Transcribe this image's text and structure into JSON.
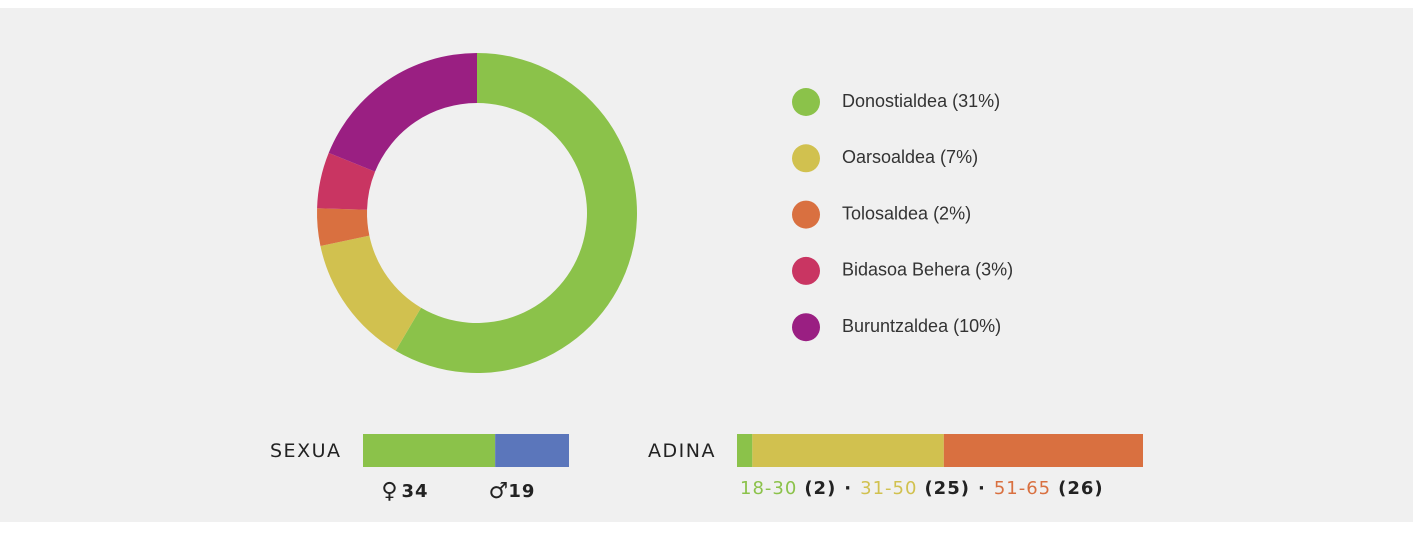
{
  "chart_data": [
    {
      "type": "pie",
      "categories": [
        "Donostialdea (31%)",
        "Oarsoaldea (7%)",
        "Tolosaldea (2%)",
        "Bidasoa Behera (3%)",
        "Buruntzaldea (10%)"
      ],
      "values": [
        31,
        7,
        2,
        3,
        10
      ],
      "colors": [
        "#8bc24a",
        "#d1c14f",
        "#d97040",
        "#c93562",
        "#9a1f82"
      ],
      "donut": true
    },
    {
      "type": "stacked-bar",
      "title": "SEXUA",
      "categories": [
        "♀",
        "♂"
      ],
      "values": [
        34,
        19
      ],
      "colors": [
        "#8bc24a",
        "#5b76bb"
      ]
    },
    {
      "type": "stacked-bar",
      "title": "ADINA",
      "categories": [
        "18-30",
        "31-50",
        "51-65"
      ],
      "values": [
        2,
        25,
        26
      ],
      "value_labels": [
        "(2)",
        "(25)",
        "(26)"
      ],
      "separator": "·",
      "colors": [
        "#8bc24a",
        "#d1c14f",
        "#d97040"
      ]
    }
  ]
}
